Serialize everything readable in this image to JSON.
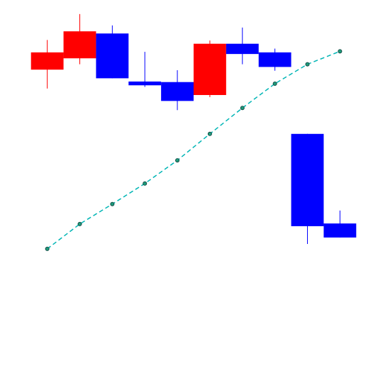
{
  "chart_data": {
    "type": "candlestick",
    "title": "",
    "xlabel": "",
    "ylabel": "",
    "axes_visible": false,
    "grid": false,
    "legend": "none",
    "x": [
      1,
      2,
      3,
      4,
      5,
      6,
      7,
      8,
      9,
      10
    ],
    "ylim": [
      -4.2,
      1.45
    ],
    "candles": [
      {
        "x": 1,
        "open": 0.58,
        "close": 0.9,
        "high": 1.13,
        "low": 0.23
      },
      {
        "x": 2,
        "open": 0.79,
        "close": 1.29,
        "high": 1.61,
        "low": 0.68
      },
      {
        "x": 3,
        "open": 1.25,
        "close": 0.42,
        "high": 1.4,
        "low": 0.42
      },
      {
        "x": 4,
        "open": 0.36,
        "close": 0.29,
        "high": 0.91,
        "low": 0.26
      },
      {
        "x": 5,
        "open": 0.35,
        "close": -0.0,
        "high": 0.57,
        "low": -0.17
      },
      {
        "x": 6,
        "open": 0.11,
        "close": 1.06,
        "high": 1.12,
        "low": 0.07
      },
      {
        "x": 7,
        "open": 1.06,
        "close": 0.87,
        "high": 1.36,
        "low": 0.68
      },
      {
        "x": 8,
        "open": 0.9,
        "close": 0.63,
        "high": 0.97,
        "low": 0.56
      },
      {
        "x": 9,
        "open": -0.61,
        "close": -2.32,
        "high": -0.61,
        "low": -2.65
      },
      {
        "x": 10,
        "open": -2.27,
        "close": -2.53,
        "high": -2.03,
        "low": -2.53
      }
    ],
    "series": [
      {
        "type": "line",
        "values": [
          -2.74,
          -2.28,
          -1.91,
          -1.53,
          -1.1,
          -0.61,
          -0.13,
          0.32,
          0.68,
          0.92
        ]
      }
    ],
    "colors": {
      "up": "#ff0000",
      "down": "#0000ff",
      "line": "#00b5b5",
      "marker_fill": "#1e9a7a",
      "marker_edge": "#0d3d3a"
    }
  }
}
